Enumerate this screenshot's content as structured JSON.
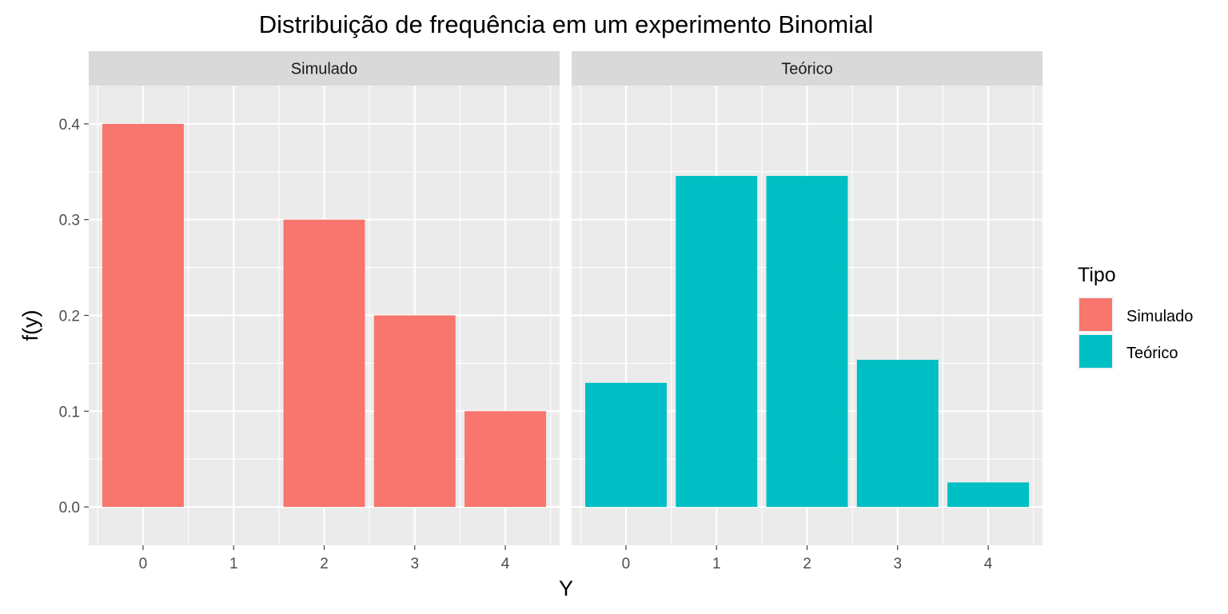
{
  "chart_data": {
    "type": "bar",
    "title": "Distribuição de frequência em um experimento Binomial",
    "xlabel": "Y",
    "ylabel": "f(y)",
    "ylim": [
      -0.04,
      0.44
    ],
    "yticks": [
      0.0,
      0.1,
      0.2,
      0.3,
      0.4
    ],
    "ytick_labels": [
      "0.0",
      "0.1",
      "0.2",
      "0.3",
      "0.4"
    ],
    "categories": [
      "0",
      "1",
      "2",
      "3",
      "4"
    ],
    "grid": true,
    "legend_position": "right",
    "legend_title": "Tipo",
    "facets": [
      {
        "name": "Simulado",
        "color": "#F8766D",
        "values": [
          0.4,
          0.0,
          0.3,
          0.2,
          0.1
        ]
      },
      {
        "name": "Teórico",
        "color": "#00BFC4",
        "values": [
          0.1296,
          0.3456,
          0.3456,
          0.1536,
          0.0256
        ]
      }
    ]
  },
  "theme": {
    "panel_bg": "#EBEBEB",
    "strip_bg": "#D9D9D9",
    "grid_color": "#FFFFFF"
  }
}
